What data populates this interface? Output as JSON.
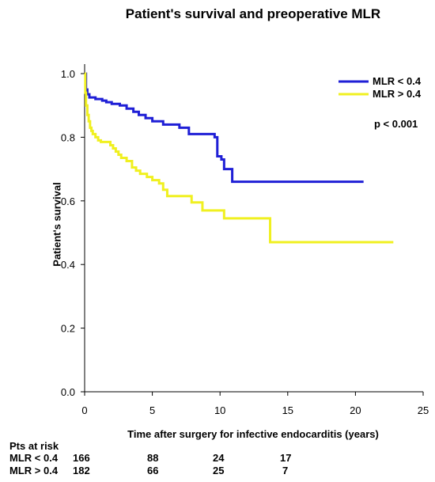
{
  "chart_data": {
    "type": "line",
    "title": "Patient's survival and preoperative MLR",
    "xlabel": "Time after surgery for infective endocarditis (years)",
    "ylabel": "Patient's survival",
    "xlim": [
      0,
      25
    ],
    "ylim": [
      0.0,
      1.0
    ],
    "x_ticks": [
      "0",
      "5",
      "10",
      "15",
      "20",
      "25"
    ],
    "y_ticks": [
      "0.0",
      "0.2",
      "0.4",
      "0.6",
      "0.8",
      "1.0"
    ],
    "grid": false,
    "legend_position": "top-right",
    "annotation": "p < 0.001",
    "series": [
      {
        "name": "MLR < 0.4",
        "color": "#1f1fd6",
        "step": true,
        "points": [
          [
            0,
            1.0
          ],
          [
            0.1,
            0.95
          ],
          [
            0.2,
            0.935
          ],
          [
            0.35,
            0.925
          ],
          [
            0.8,
            0.92
          ],
          [
            1.3,
            0.915
          ],
          [
            1.6,
            0.91
          ],
          [
            2.0,
            0.905
          ],
          [
            2.6,
            0.9
          ],
          [
            3.1,
            0.89
          ],
          [
            3.6,
            0.88
          ],
          [
            4.0,
            0.87
          ],
          [
            4.5,
            0.86
          ],
          [
            5.0,
            0.85
          ],
          [
            5.8,
            0.84
          ],
          [
            7.0,
            0.83
          ],
          [
            7.7,
            0.81
          ],
          [
            9.6,
            0.8
          ],
          [
            9.8,
            0.74
          ],
          [
            10.1,
            0.73
          ],
          [
            10.3,
            0.7
          ],
          [
            10.9,
            0.66
          ],
          [
            20.6,
            0.66
          ]
        ]
      },
      {
        "name": "MLR > 0.4",
        "color": "#f0f020",
        "step": true,
        "points": [
          [
            0,
            1.0
          ],
          [
            0.05,
            0.94
          ],
          [
            0.1,
            0.9
          ],
          [
            0.2,
            0.87
          ],
          [
            0.3,
            0.85
          ],
          [
            0.4,
            0.83
          ],
          [
            0.5,
            0.82
          ],
          [
            0.6,
            0.81
          ],
          [
            0.8,
            0.8
          ],
          [
            1.0,
            0.79
          ],
          [
            1.2,
            0.785
          ],
          [
            1.9,
            0.775
          ],
          [
            2.1,
            0.765
          ],
          [
            2.3,
            0.755
          ],
          [
            2.5,
            0.745
          ],
          [
            2.7,
            0.735
          ],
          [
            3.1,
            0.725
          ],
          [
            3.5,
            0.705
          ],
          [
            3.8,
            0.695
          ],
          [
            4.1,
            0.685
          ],
          [
            4.6,
            0.675
          ],
          [
            5.0,
            0.665
          ],
          [
            5.5,
            0.655
          ],
          [
            5.8,
            0.635
          ],
          [
            6.1,
            0.615
          ],
          [
            7.9,
            0.595
          ],
          [
            8.7,
            0.57
          ],
          [
            10.3,
            0.545
          ],
          [
            13.7,
            0.47
          ],
          [
            22.8,
            0.47
          ]
        ]
      }
    ]
  },
  "risk_table": {
    "title": "Pts at risk",
    "rows": [
      {
        "label": "MLR < 0.4",
        "values": [
          "166",
          "88",
          "24",
          "17"
        ]
      },
      {
        "label": "MLR > 0.4",
        "values": [
          "182",
          "66",
          "25",
          "7"
        ]
      }
    ]
  }
}
